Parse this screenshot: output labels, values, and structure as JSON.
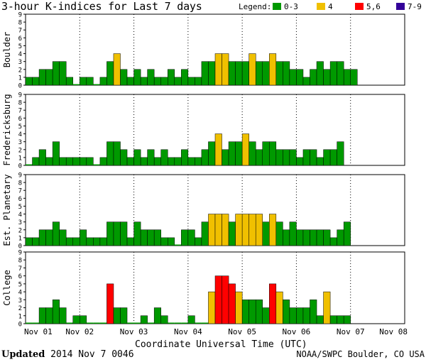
{
  "chart_data": {
    "type": "bar",
    "title": "3-hour K-indices for Last 7 days",
    "legend": {
      "label": "Legend:",
      "items": [
        {
          "label": "0-3",
          "color": "#009900"
        },
        {
          "label": "4",
          "color": "#f0c000"
        },
        {
          "label": "5,6",
          "color": "#ff0000"
        },
        {
          "label": "7-9",
          "color": "#330099"
        }
      ]
    },
    "xlabel": "Coordinate Universal Time (UTC)",
    "x_ticks": [
      "Nov 01",
      "Nov 02",
      "Nov 03",
      "Nov 04",
      "Nov 05",
      "Nov 06",
      "Nov 07",
      "Nov 08"
    ],
    "ylim": [
      0,
      9
    ],
    "y_ticks": [
      "0",
      "1",
      "2",
      "3",
      "4",
      "5",
      "6",
      "7",
      "8",
      "9"
    ],
    "panels": [
      {
        "name": "Boulder",
        "values": [
          1,
          1,
          2,
          2,
          3,
          3,
          1,
          0,
          1,
          1,
          0,
          1,
          3,
          4,
          2,
          1,
          2,
          1,
          2,
          1,
          1,
          2,
          1,
          2,
          1,
          1,
          3,
          3,
          4,
          4,
          3,
          3,
          3,
          4,
          3,
          3,
          4,
          3,
          3,
          2,
          2,
          1,
          2,
          3,
          2,
          3,
          3,
          2,
          2
        ]
      },
      {
        "name": "Fredericksburg",
        "values": [
          0,
          1,
          2,
          1,
          3,
          1,
          1,
          1,
          1,
          1,
          0,
          1,
          3,
          3,
          2,
          1,
          2,
          1,
          2,
          1,
          2,
          1,
          1,
          2,
          1,
          1,
          2,
          3,
          4,
          2,
          3,
          3,
          4,
          3,
          2,
          3,
          3,
          2,
          2,
          2,
          1,
          2,
          2,
          1,
          2,
          2,
          3
        ]
      },
      {
        "name": "Est. Planetary",
        "values": [
          1,
          1,
          2,
          2,
          3,
          2,
          1,
          1,
          2,
          1,
          1,
          1,
          3,
          3,
          3,
          1,
          3,
          2,
          2,
          2,
          1,
          1,
          0,
          2,
          2,
          1,
          3,
          4,
          4,
          4,
          3,
          4,
          4,
          4,
          4,
          3,
          4,
          3,
          2,
          3,
          2,
          2,
          2,
          2,
          2,
          1,
          2,
          3
        ]
      },
      {
        "name": "College",
        "values": [
          0,
          0,
          2,
          2,
          3,
          2,
          0,
          1,
          1,
          0,
          0,
          0,
          5,
          2,
          2,
          0,
          0,
          1,
          0,
          2,
          1,
          0,
          0,
          0,
          1,
          0,
          0,
          4,
          6,
          6,
          5,
          4,
          3,
          3,
          3,
          2,
          5,
          4,
          3,
          2,
          2,
          2,
          3,
          1,
          4,
          1,
          1,
          1
        ]
      }
    ]
  },
  "footer": {
    "updated_label": "Updated",
    "updated_value": "2014 Nov  7 0046",
    "source": "NOAA/SWPC Boulder, CO USA"
  }
}
